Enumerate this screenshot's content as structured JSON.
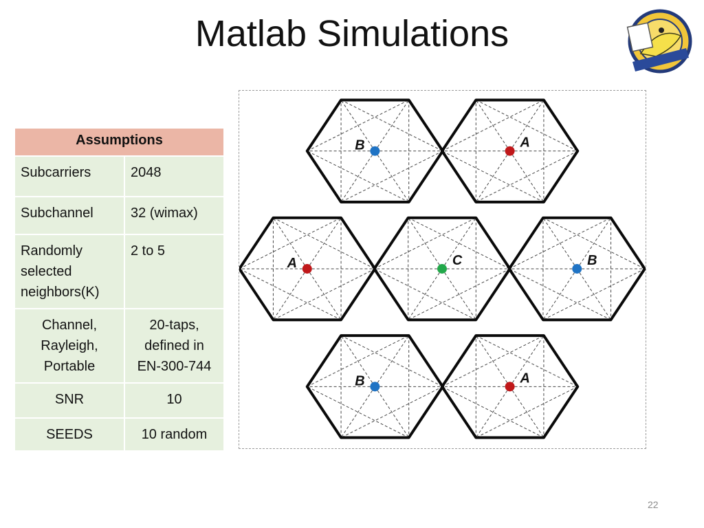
{
  "title": "Matlab Simulations",
  "page_number": "22",
  "logo_icon": "university-seal-banana-slug-logo",
  "table": {
    "header": "Assumptions",
    "rows": [
      {
        "param": [
          "Subcarriers"
        ],
        "value": [
          "2048"
        ],
        "align": "left"
      },
      {
        "param": [
          "Subchannel"
        ],
        "value": [
          "32 (wimax)"
        ],
        "align": "left"
      },
      {
        "param": [
          "Randomly",
          "selected",
          "neighbors(K)"
        ],
        "value": [
          "2 to 5"
        ],
        "align": "left"
      },
      {
        "param": [
          "Channel,",
          "Rayleigh,",
          "Portable"
        ],
        "value": [
          "20-taps,",
          "defined in",
          "EN-300-744"
        ],
        "align": "center"
      },
      {
        "param": [
          "SNR"
        ],
        "value": [
          "10"
        ],
        "align": "center"
      },
      {
        "param": [
          "SEEDS"
        ],
        "value": [
          "10 random"
        ],
        "align": "center"
      }
    ]
  },
  "diagram": {
    "cells": [
      {
        "label": "B",
        "color": "#1f73c4",
        "label_side": "left"
      },
      {
        "label": "A",
        "color": "#c0181a",
        "label_side": "right"
      },
      {
        "label": "A",
        "color": "#c0181a",
        "label_side": "left"
      },
      {
        "label": "C",
        "color": "#22a84a",
        "label_side": "right"
      },
      {
        "label": "B",
        "color": "#1f73c4",
        "label_side": "right"
      },
      {
        "label": "B",
        "color": "#1f73c4",
        "label_side": "left"
      },
      {
        "label": "A",
        "color": "#c0181a",
        "label_side": "right"
      }
    ]
  }
}
